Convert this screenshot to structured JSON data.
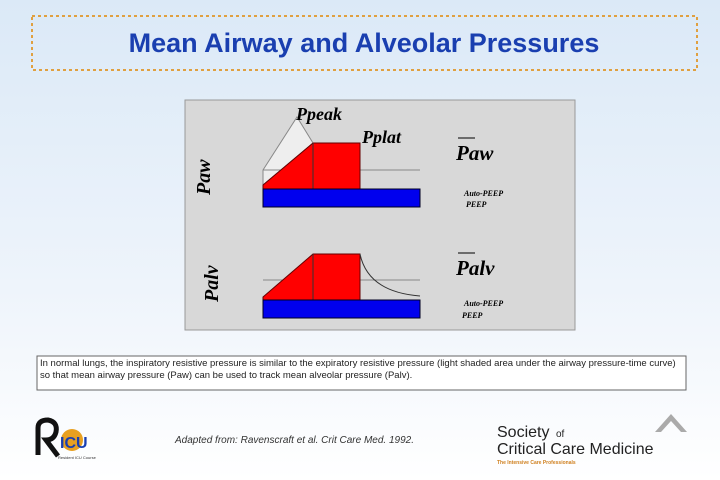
{
  "header": {
    "title": "Mean Airway and Alveolar Pressures"
  },
  "diagram": {
    "airway": {
      "axis_label": "Paw",
      "peak_label": "Ppeak",
      "plateau_label": "Pplat",
      "mean_label": "Paw",
      "auto_peep": "Auto-PEEP",
      "peep": "PEEP"
    },
    "alveolar": {
      "axis_label": "Palv",
      "mean_label": "Palv",
      "auto_peep": "Auto-PEEP",
      "peep": "PEEP"
    }
  },
  "caption": "In normal lungs,  the inspiratory resistive pressure is similar to the expiratory resistive pressure (light shaded area under the airway pressure-time curve) so that mean airway pressure (Paw) can be used to track mean alveolar pressure (Palv).",
  "footer": {
    "citation": "Adapted from: Ravenscraft et al. Crit Care Med. 1992.",
    "left_logo": {
      "text": "ICU",
      "subtitle": "Resident ICU Course"
    },
    "right_logo": {
      "line1": "Society",
      "line1_suffix": "of",
      "line2": "Critical Care Medicine",
      "tagline": "The Intensive Care Professionals"
    }
  }
}
